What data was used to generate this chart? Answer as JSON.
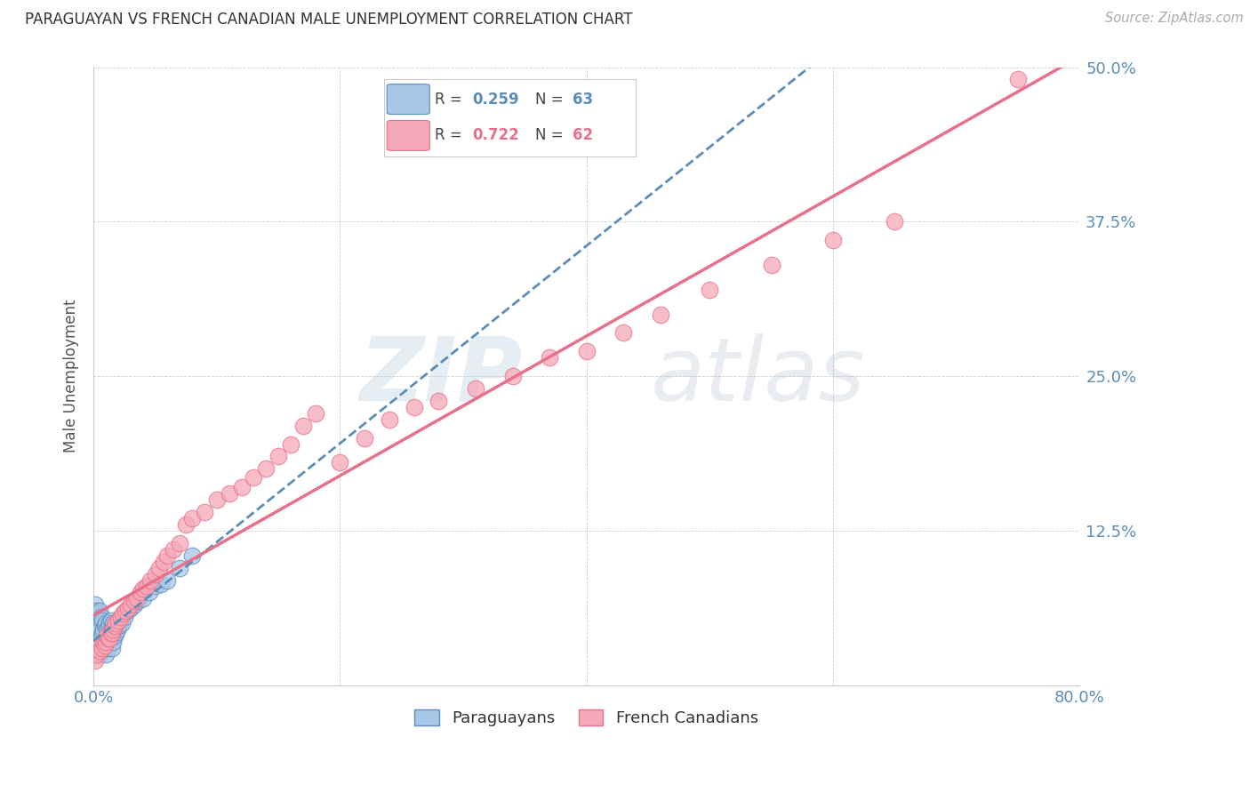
{
  "title": "PARAGUAYAN VS FRENCH CANADIAN MALE UNEMPLOYMENT CORRELATION CHART",
  "source": "Source: ZipAtlas.com",
  "ylabel": "Male Unemployment",
  "watermark_zip": "ZIP",
  "watermark_atlas": "atlas",
  "xlim": [
    0.0,
    0.8
  ],
  "ylim": [
    0.0,
    0.5
  ],
  "yticks": [
    0.0,
    0.125,
    0.25,
    0.375,
    0.5
  ],
  "xticks": [
    0.0,
    0.2,
    0.4,
    0.6,
    0.8
  ],
  "xtick_labels": [
    "0.0%",
    "",
    "",
    "",
    "80.0%"
  ],
  "ytick_labels": [
    "",
    "12.5%",
    "25.0%",
    "37.5%",
    "50.0%"
  ],
  "blue_color": "#5B8DB8",
  "pink_color": "#E8708A",
  "blue_scatter_face": "#A8C8E8",
  "pink_scatter_face": "#F5A8B8",
  "paraguayan_R": "0.259",
  "paraguayan_N": "63",
  "french_R": "0.722",
  "french_N": "62",
  "paraguayan_x": [
    0.001,
    0.001,
    0.001,
    0.001,
    0.002,
    0.002,
    0.002,
    0.002,
    0.003,
    0.003,
    0.003,
    0.003,
    0.004,
    0.004,
    0.004,
    0.005,
    0.005,
    0.005,
    0.005,
    0.006,
    0.006,
    0.006,
    0.007,
    0.007,
    0.007,
    0.008,
    0.008,
    0.009,
    0.009,
    0.01,
    0.01,
    0.01,
    0.011,
    0.011,
    0.012,
    0.012,
    0.013,
    0.013,
    0.014,
    0.014,
    0.015,
    0.015,
    0.016,
    0.016,
    0.017,
    0.018,
    0.019,
    0.02,
    0.021,
    0.022,
    0.023,
    0.025,
    0.027,
    0.03,
    0.033,
    0.036,
    0.04,
    0.045,
    0.05,
    0.055,
    0.06,
    0.07,
    0.08
  ],
  "paraguayan_y": [
    0.03,
    0.045,
    0.055,
    0.065,
    0.025,
    0.035,
    0.05,
    0.06,
    0.028,
    0.038,
    0.048,
    0.058,
    0.03,
    0.042,
    0.052,
    0.025,
    0.035,
    0.045,
    0.06,
    0.028,
    0.04,
    0.055,
    0.03,
    0.042,
    0.052,
    0.032,
    0.045,
    0.03,
    0.048,
    0.025,
    0.038,
    0.05,
    0.032,
    0.045,
    0.03,
    0.048,
    0.035,
    0.05,
    0.038,
    0.052,
    0.03,
    0.048,
    0.035,
    0.05,
    0.04,
    0.042,
    0.045,
    0.048,
    0.052,
    0.055,
    0.05,
    0.055,
    0.06,
    0.062,
    0.065,
    0.068,
    0.07,
    0.075,
    0.08,
    0.082,
    0.085,
    0.095,
    0.105
  ],
  "french_x": [
    0.001,
    0.002,
    0.003,
    0.005,
    0.007,
    0.008,
    0.009,
    0.01,
    0.011,
    0.012,
    0.013,
    0.014,
    0.015,
    0.016,
    0.017,
    0.018,
    0.02,
    0.022,
    0.024,
    0.026,
    0.028,
    0.03,
    0.033,
    0.035,
    0.038,
    0.04,
    0.043,
    0.046,
    0.05,
    0.053,
    0.057,
    0.06,
    0.065,
    0.07,
    0.075,
    0.08,
    0.09,
    0.1,
    0.11,
    0.12,
    0.13,
    0.14,
    0.15,
    0.16,
    0.17,
    0.18,
    0.2,
    0.22,
    0.24,
    0.26,
    0.28,
    0.31,
    0.34,
    0.37,
    0.4,
    0.43,
    0.46,
    0.5,
    0.55,
    0.6,
    0.65,
    0.75
  ],
  "french_y": [
    0.02,
    0.025,
    0.03,
    0.028,
    0.03,
    0.035,
    0.032,
    0.035,
    0.04,
    0.038,
    0.038,
    0.042,
    0.042,
    0.045,
    0.048,
    0.05,
    0.052,
    0.055,
    0.058,
    0.06,
    0.062,
    0.065,
    0.068,
    0.07,
    0.075,
    0.078,
    0.08,
    0.085,
    0.09,
    0.095,
    0.1,
    0.105,
    0.11,
    0.115,
    0.13,
    0.135,
    0.14,
    0.15,
    0.155,
    0.16,
    0.168,
    0.175,
    0.185,
    0.195,
    0.21,
    0.22,
    0.18,
    0.2,
    0.215,
    0.225,
    0.23,
    0.24,
    0.25,
    0.265,
    0.27,
    0.285,
    0.3,
    0.32,
    0.34,
    0.36,
    0.375,
    0.49
  ]
}
